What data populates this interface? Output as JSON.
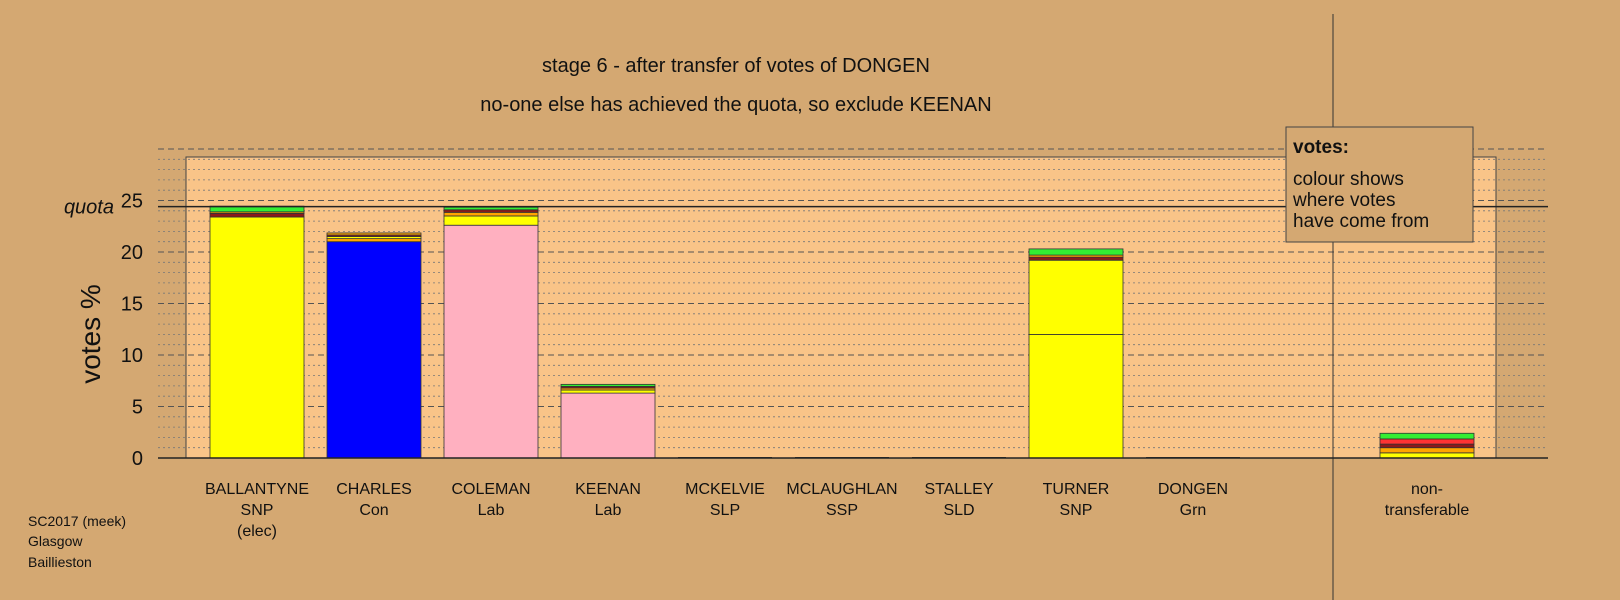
{
  "chart_data": {
    "type": "bar",
    "title": "stage 6 - after transfer of votes of DONGEN",
    "subtitle": "no-one else has achieved the quota, so exclude KEENAN",
    "ylabel": "votes %",
    "ylim": [
      0,
      30
    ],
    "yticks": [
      0,
      5,
      10,
      15,
      20,
      25
    ],
    "quota": 24.4,
    "quota_label": "quota",
    "candidates": [
      {
        "name": "BALLANTYNE",
        "party": "SNP",
        "status": "(elec)",
        "segments": [
          {
            "value": 23.4,
            "color": "#ffff00"
          },
          {
            "value": 0.35,
            "color": "#8b1a1a"
          },
          {
            "value": 0.15,
            "color": "#ffa500"
          },
          {
            "value": 0.55,
            "color": "#33ee33"
          }
        ]
      },
      {
        "name": "CHARLES",
        "party": "Con",
        "status": "",
        "segments": [
          {
            "value": 21.0,
            "color": "#0000ff"
          },
          {
            "value": 0.3,
            "color": "#ffa500"
          },
          {
            "value": 0.2,
            "color": "#ffff00"
          },
          {
            "value": 0.15,
            "color": "#8b1a1a"
          },
          {
            "value": 0.2,
            "color": "#ffa500"
          }
        ]
      },
      {
        "name": "COLEMAN",
        "party": "Lab",
        "status": "",
        "segments": [
          {
            "value": 22.6,
            "color": "#ffb0c0"
          },
          {
            "value": 0.9,
            "color": "#ffff00"
          },
          {
            "value": 0.35,
            "color": "#ffa500"
          },
          {
            "value": 0.25,
            "color": "#8b1a1a"
          },
          {
            "value": 0.25,
            "color": "#33ee33"
          }
        ]
      },
      {
        "name": "KEENAN",
        "party": "Lab",
        "status": "",
        "segments": [
          {
            "value": 6.3,
            "color": "#ffb0c0"
          },
          {
            "value": 0.3,
            "color": "#ffff00"
          },
          {
            "value": 0.2,
            "color": "#ffa500"
          },
          {
            "value": 0.15,
            "color": "#8b1a1a"
          },
          {
            "value": 0.2,
            "color": "#33ee33"
          }
        ]
      },
      {
        "name": "MCKELVIE",
        "party": "SLP",
        "status": "",
        "segments": []
      },
      {
        "name": "MCLAUGHLAN",
        "party": "SSP",
        "status": "",
        "segments": []
      },
      {
        "name": "STALLEY",
        "party": "SLD",
        "status": "",
        "segments": []
      },
      {
        "name": "TURNER",
        "party": "SNP",
        "status": "",
        "segments": [
          {
            "value": 12.0,
            "color": "#ffff00"
          },
          {
            "value": 7.2,
            "color": "#ffff00"
          },
          {
            "value": 0.3,
            "color": "#8b1a1a"
          },
          {
            "value": 0.2,
            "color": "#ffa500"
          },
          {
            "value": 0.6,
            "color": "#33ee33"
          }
        ]
      },
      {
        "name": "DONGEN",
        "party": "Grn",
        "status": "",
        "segments": []
      }
    ],
    "nontransferable": {
      "label_line1": "non-",
      "label_line2": "transferable",
      "segments": [
        {
          "value": 0.5,
          "color": "#ffff00"
        },
        {
          "value": 0.5,
          "color": "#ffa500"
        },
        {
          "value": 0.35,
          "color": "#8b1a1a"
        },
        {
          "value": 0.5,
          "color": "#ff3333"
        },
        {
          "value": 0.55,
          "color": "#33ee33"
        }
      ]
    },
    "legend": {
      "title": "votes:",
      "lines": [
        "colour shows",
        "where votes",
        "have come from"
      ],
      "placement": "top-right"
    },
    "footer": [
      "SC2017 (meek)",
      "Glasgow",
      "Baillieston"
    ],
    "colors": {
      "background": "#d4a872",
      "plot_area": "#f9c488",
      "yellow": "#ffff00",
      "blue": "#0000ff",
      "pink": "#ffb0c0",
      "green": "#33ee33",
      "orange": "#ffa500",
      "darkred": "#8b1a1a",
      "red": "#ff3333"
    }
  }
}
